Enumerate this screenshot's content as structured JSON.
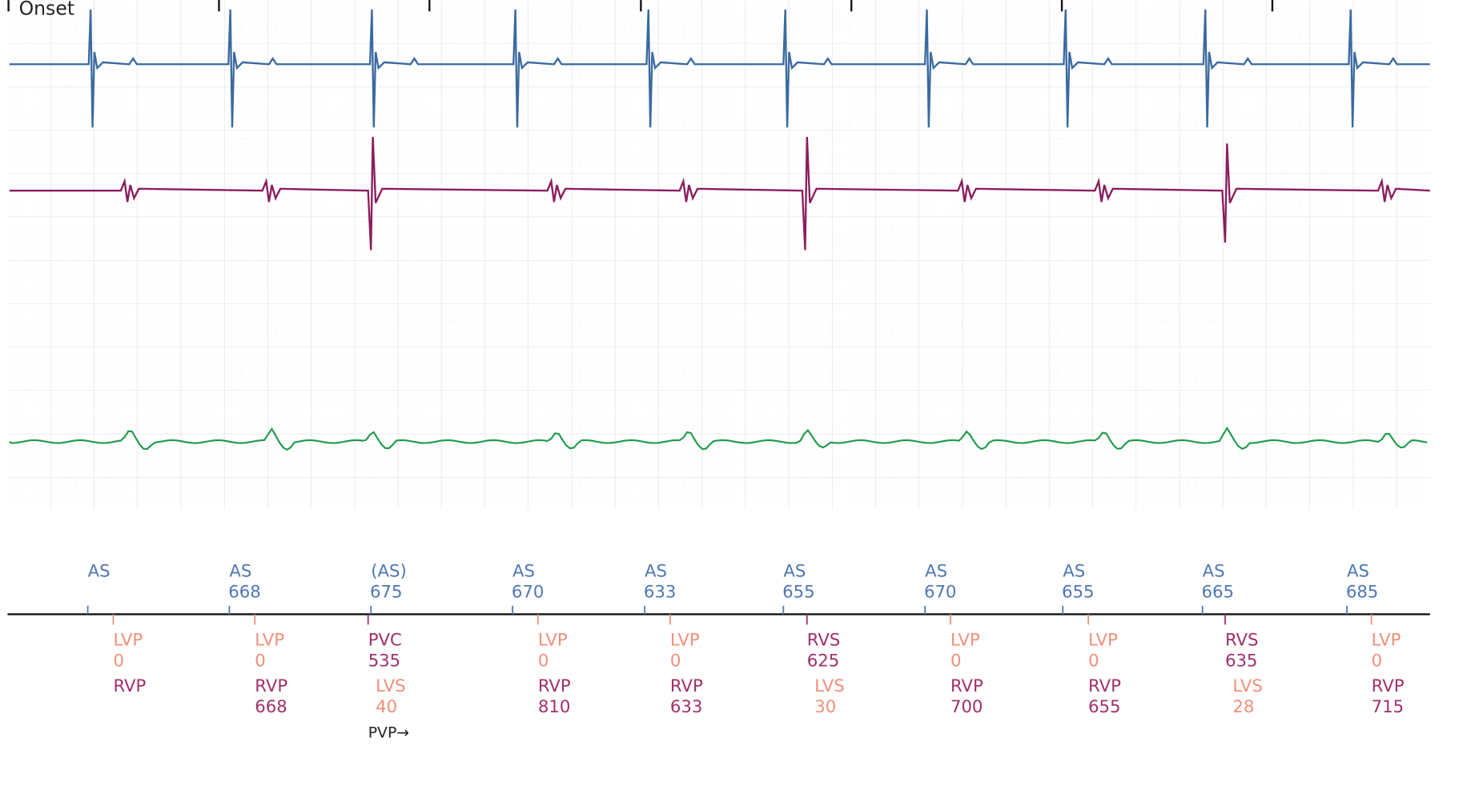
{
  "header": {
    "label": "Onset"
  },
  "atrial_markers": [
    {
      "label": "AS"
    },
    {
      "label": "AS",
      "interval": 668
    },
    {
      "label": "(AS)",
      "interval": 675
    },
    {
      "label": "AS",
      "interval": 670
    },
    {
      "label": "AS",
      "interval": 633
    },
    {
      "label": "AS",
      "interval": 655
    },
    {
      "label": "AS",
      "interval": 670
    },
    {
      "label": "AS",
      "interval": 655
    },
    {
      "label": "AS",
      "interval": 665
    },
    {
      "label": "AS",
      "interval": 685
    }
  ],
  "ventricular_markers": [
    {
      "upper": {
        "label": "LVP",
        "value": 0
      },
      "lower": {
        "label": "RVP"
      }
    },
    {
      "upper": {
        "label": "LVP",
        "value": 0
      },
      "lower": {
        "label": "RVP",
        "value": 668
      }
    },
    {
      "upper": {
        "label": "PVC",
        "value": 535
      },
      "lower": {
        "label": "LVS",
        "value": 40
      },
      "note": "PVP→"
    },
    {
      "upper": {
        "label": "LVP",
        "value": 0
      },
      "lower": {
        "label": "RVP",
        "value": 810
      }
    },
    {
      "upper": {
        "label": "LVP",
        "value": 0
      },
      "lower": {
        "label": "RVP",
        "value": 633
      }
    },
    {
      "upper": {
        "label": "RVS",
        "value": 625
      },
      "lower": {
        "label": "LVS",
        "value": 30
      }
    },
    {
      "upper": {
        "label": "LVP",
        "value": 0
      },
      "lower": {
        "label": "RVP",
        "value": 700
      }
    },
    {
      "upper": {
        "label": "LVP",
        "value": 0
      },
      "lower": {
        "label": "RVP",
        "value": 655
      }
    },
    {
      "upper": {
        "label": "RVS",
        "value": 635
      },
      "lower": {
        "label": "LVS",
        "value": 28
      }
    },
    {
      "upper": {
        "label": "LVP",
        "value": 0
      },
      "lower": {
        "label": "RVP",
        "value": 715
      }
    }
  ]
}
